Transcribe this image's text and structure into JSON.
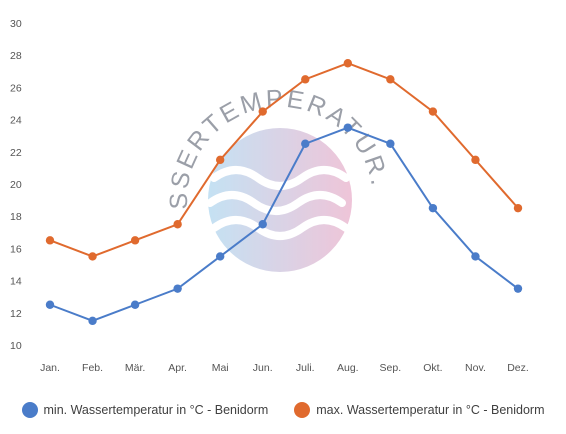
{
  "chart_data": {
    "type": "line",
    "categories": [
      "Jan.",
      "Feb.",
      "Mär.",
      "Apr.",
      "Mai",
      "Jun.",
      "Juli.",
      "Aug.",
      "Sep.",
      "Okt.",
      "Nov.",
      "Dez."
    ],
    "series": [
      {
        "name": "min. Wassertemperatur in °C - Benidorm",
        "color": "#4a7cc9",
        "values": [
          12.5,
          11.5,
          12.5,
          13.5,
          15.5,
          17.5,
          22.5,
          23.5,
          22.5,
          18.5,
          15.5,
          13.5
        ]
      },
      {
        "name": "max. Wassertemperatur in °C - Benidorm",
        "color": "#e06a2e",
        "values": [
          16.5,
          15.5,
          16.5,
          17.5,
          21.5,
          24.5,
          26.5,
          27.5,
          26.5,
          24.5,
          21.5,
          18.5
        ]
      }
    ],
    "ylim": [
      10,
      30
    ],
    "yticks": [
      10,
      12,
      14,
      16,
      18,
      20,
      22,
      24,
      26,
      28,
      30
    ],
    "grid": false,
    "legend_position": "bottom"
  },
  "watermark": {
    "text": "WASSERTEMPERATUR.ORG"
  }
}
